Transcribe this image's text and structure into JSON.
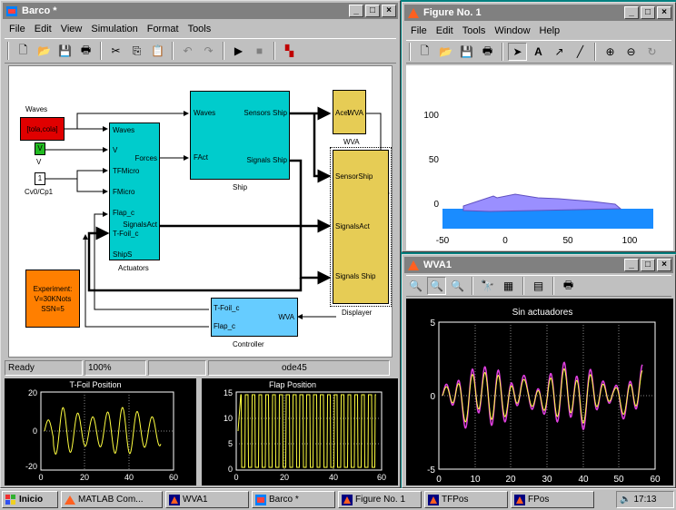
{
  "barco": {
    "title": "Barco *",
    "menu": [
      "File",
      "Edit",
      "View",
      "Simulation",
      "Format",
      "Tools"
    ],
    "blocks": {
      "waves_label": "Waves",
      "waves_src": "[tola,cola]",
      "v_src": "V",
      "v_label": "V",
      "cv_src": "1",
      "cv_label": "Cv0/Cp1",
      "act_in": [
        "Waves",
        "V",
        "TFMicro",
        "FMicro",
        "Flap_c",
        "T-Foil_c",
        "ShipS"
      ],
      "act_out1": "Forces",
      "act_out2": "SignalsAct",
      "act_label": "Actuators",
      "ship_in1": "Waves",
      "ship_in2": "FAct",
      "ship_out1": "Sensors Ship",
      "ship_out2": "Signals Ship",
      "ship_label": "Ship",
      "wva_in": "Acel",
      "wva_out": "WVA",
      "wva_label": "WVA",
      "disp_in": [
        "SensorShip",
        "SignalsAct",
        "Signals Ship"
      ],
      "disp_label": "Displayer",
      "ctrl_in1": "T-Foil_c",
      "ctrl_in2": "Flap_c",
      "ctrl_out": "WVA",
      "ctrl_label": "Controller",
      "exp_text": [
        "Experiment:",
        "V=30KNots",
        "SSN=5"
      ]
    },
    "status": {
      "ready": "Ready",
      "zoom": "100%",
      "solver": "ode45"
    },
    "scopes": [
      {
        "title": "T-Foil Position",
        "yticks": [
          "20",
          "0",
          "-20"
        ],
        "xticks": [
          "0",
          "20",
          "40",
          "60"
        ]
      },
      {
        "title": "Flap Position",
        "yticks": [
          "15",
          "10",
          "5",
          "0"
        ],
        "xticks": [
          "0",
          "20",
          "40",
          "60"
        ]
      }
    ]
  },
  "figure1": {
    "title": "Figure No. 1",
    "menu": [
      "File",
      "Edit",
      "Tools",
      "Window",
      "Help"
    ],
    "yticks": [
      "100",
      "50",
      "0"
    ],
    "xticks": [
      "-50",
      "0",
      "50",
      "100"
    ]
  },
  "wva1": {
    "title": "WVA1",
    "plot_title": "Sin actuadores",
    "yticks": [
      "5",
      "0",
      "-5"
    ],
    "xticks": [
      "0",
      "10",
      "20",
      "30",
      "40",
      "50",
      "60"
    ]
  },
  "taskbar": {
    "start": "Inicio",
    "items": [
      "MATLAB Com...",
      "WVA1",
      "Barco *",
      "Figure No. 1",
      "TFPos",
      "FPos"
    ],
    "clock": "17:13"
  },
  "colors": {
    "title_active": "#000080",
    "title_inactive": "#808080",
    "block_cyan": "#00cccc",
    "block_yellow": "#e6cc55",
    "block_lightblue": "#66ccff",
    "block_red": "#e00000",
    "block_green": "#22bb22",
    "block_orange": "#ff7f00",
    "sea": "#1a8cff",
    "ship": "#9a8fff"
  }
}
